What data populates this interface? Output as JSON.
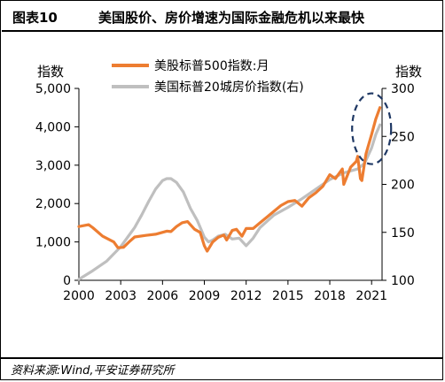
{
  "header": {
    "figure_label": "图表10",
    "title": "美国股价、房价增速为国际金融危机以来最快"
  },
  "source": "资料来源:Wind,平安证券研究所",
  "colors": {
    "spx": "#ED7D31",
    "hpi": "#BFBFBF",
    "highlight": "#1F3864"
  },
  "chart_data": {
    "type": "line",
    "title": "",
    "ylabel_left": "指数",
    "ylabel_right": "指数",
    "x_range": [
      2000,
      2021.75
    ],
    "x_ticks": [
      2000,
      2003,
      2006,
      2009,
      2012,
      2015,
      2018,
      2021
    ],
    "x_tick_labels": [
      "2000",
      "2003",
      "2006",
      "2009",
      "2012",
      "2015",
      "2018",
      "2021"
    ],
    "ylim_left": [
      0,
      5000
    ],
    "y_ticks_left": [
      0,
      1000,
      2000,
      3000,
      4000,
      5000
    ],
    "y_tick_labels_left": [
      "0",
      "1,000",
      "2,000",
      "3,000",
      "4,000",
      "5,000"
    ],
    "ylim_right": [
      100,
      300
    ],
    "y_ticks_right": [
      100,
      150,
      200,
      250,
      300
    ],
    "y_tick_labels_right": [
      "100",
      "150",
      "200",
      "250",
      "300"
    ],
    "grid": false,
    "legend_position": "top-center",
    "series": [
      {
        "name": "美股标普500指数:月",
        "axis": "left",
        "color": "#ED7D31",
        "x": [
          2000.0,
          2000.7,
          2001.0,
          2001.7,
          2002.5,
          2002.8,
          2003.2,
          2003.6,
          2004.0,
          2004.8,
          2005.5,
          2006.3,
          2006.6,
          2007.0,
          2007.4,
          2007.8,
          2008.3,
          2008.7,
          2009.0,
          2009.2,
          2009.6,
          2010.0,
          2010.4,
          2010.6,
          2011.0,
          2011.3,
          2011.7,
          2012.0,
          2012.5,
          2013.0,
          2013.5,
          2014.0,
          2014.5,
          2015.0,
          2015.5,
          2016.0,
          2016.5,
          2017.0,
          2017.5,
          2018.0,
          2018.4,
          2018.9,
          2019.0,
          2019.5,
          2019.9,
          2020.0,
          2020.2,
          2020.3,
          2020.6,
          2021.0,
          2021.3,
          2021.6
        ],
        "values": [
          1400,
          1450,
          1370,
          1150,
          1000,
          850,
          860,
          1000,
          1130,
          1170,
          1200,
          1280,
          1270,
          1400,
          1500,
          1530,
          1330,
          1250,
          900,
          760,
          1000,
          1120,
          1180,
          1050,
          1300,
          1330,
          1150,
          1350,
          1350,
          1500,
          1650,
          1800,
          1950,
          2050,
          2080,
          1930,
          2150,
          2280,
          2450,
          2750,
          2650,
          2900,
          2500,
          2950,
          3100,
          3230,
          2650,
          2600,
          3300,
          3800,
          4200,
          4500
        ]
      },
      {
        "name": "美国标普20城房价指数(右)",
        "axis": "right",
        "color": "#BFBFBF",
        "x": [
          2000.0,
          2001.0,
          2002.0,
          2003.0,
          2004.0,
          2004.5,
          2005.0,
          2005.5,
          2006.0,
          2006.3,
          2006.6,
          2007.0,
          2007.5,
          2008.0,
          2008.5,
          2009.0,
          2009.3,
          2009.6,
          2010.0,
          2010.5,
          2011.0,
          2011.5,
          2012.0,
          2012.5,
          2013.0,
          2014.0,
          2015.0,
          2016.0,
          2017.0,
          2018.0,
          2019.0,
          2020.0,
          2020.5,
          2021.0,
          2021.3,
          2021.6
        ],
        "values": [
          101,
          110,
          120,
          135,
          155,
          168,
          182,
          195,
          204,
          206,
          206,
          202,
          192,
          175,
          162,
          145,
          140,
          142,
          146,
          148,
          143,
          144,
          136,
          144,
          155,
          168,
          176,
          185,
          195,
          205,
          212,
          216,
          222,
          238,
          252,
          262
        ]
      }
    ]
  }
}
